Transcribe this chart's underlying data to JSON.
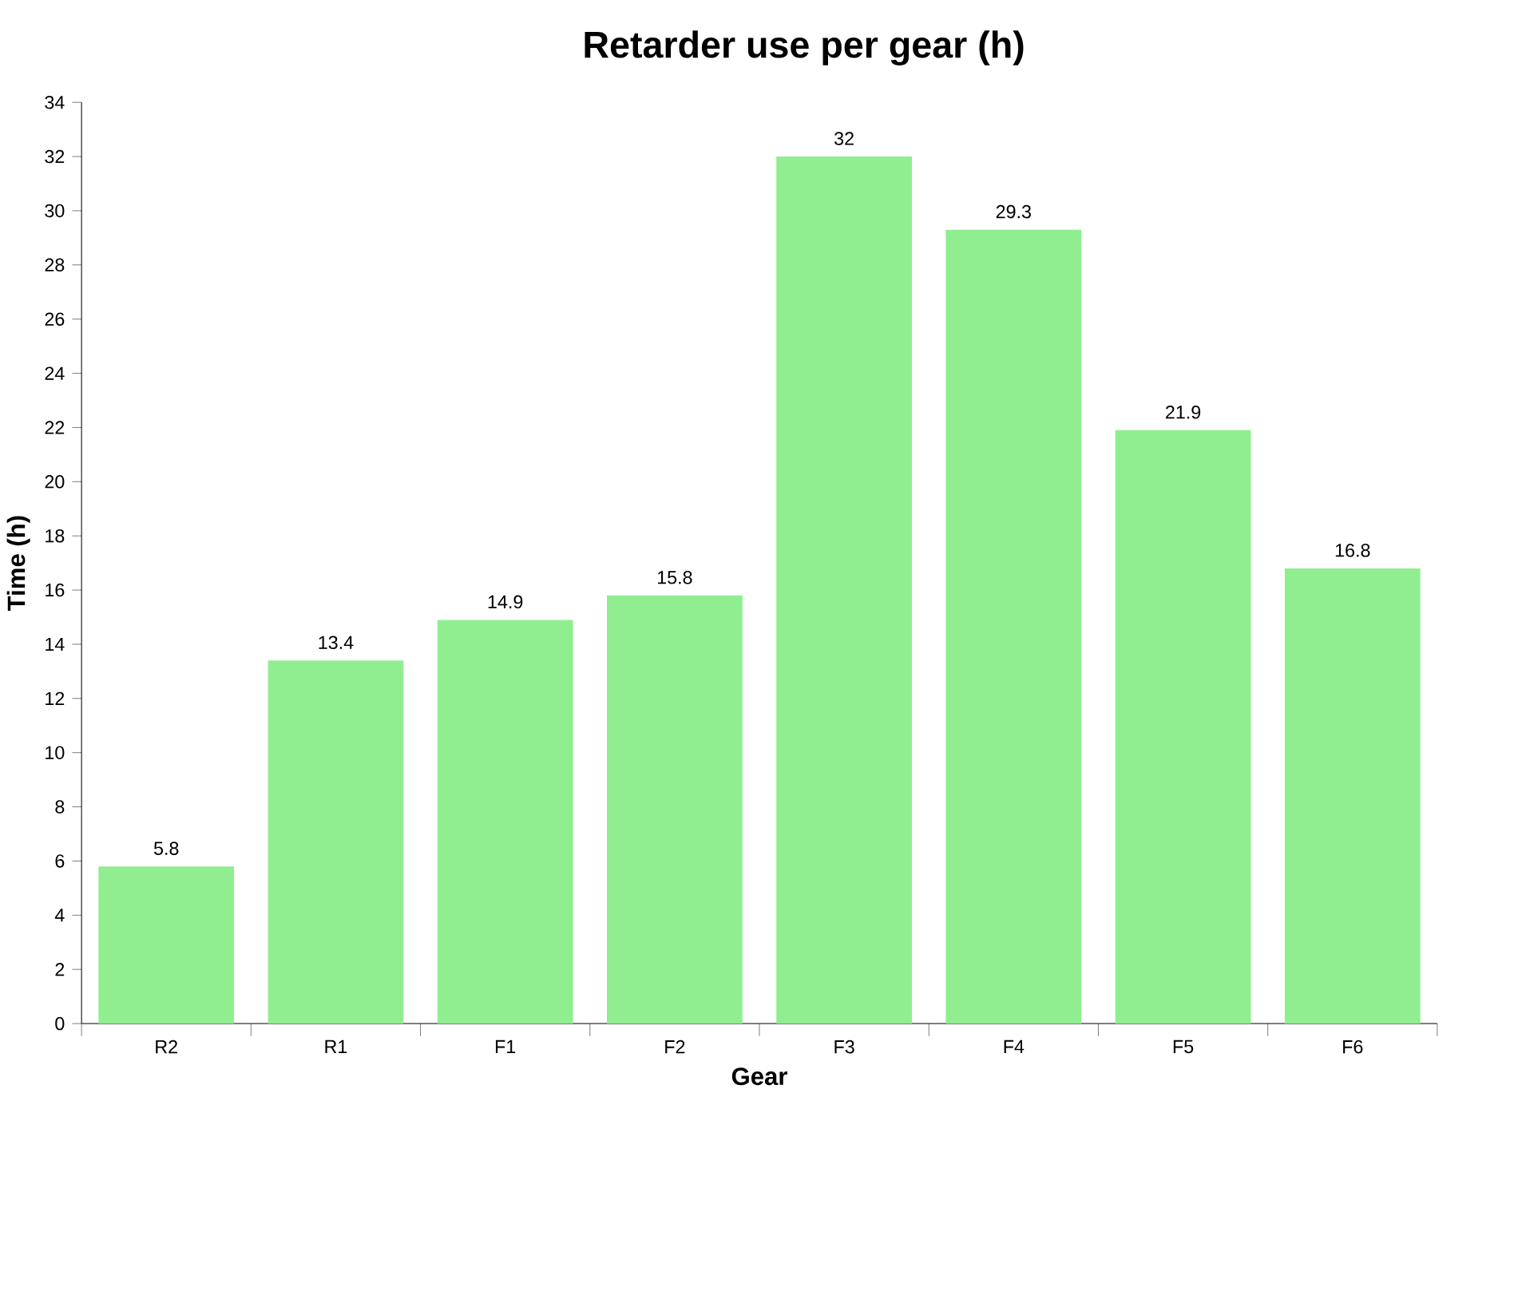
{
  "chart_data": {
    "type": "bar",
    "title": "Retarder use per gear (h)",
    "xlabel": "Gear",
    "ylabel": "Time (h)",
    "categories": [
      "R2",
      "R1",
      "F1",
      "F2",
      "F3",
      "F4",
      "F5",
      "F6"
    ],
    "values": [
      5.8,
      13.4,
      14.9,
      15.8,
      32,
      29.3,
      21.9,
      16.8
    ],
    "color": "#90ee90",
    "ylim": [
      0,
      34
    ],
    "yticks": [
      0,
      2,
      4,
      6,
      8,
      10,
      12,
      14,
      16,
      18,
      20,
      22,
      24,
      26,
      28,
      30,
      32,
      34
    ],
    "data_labels": true
  }
}
